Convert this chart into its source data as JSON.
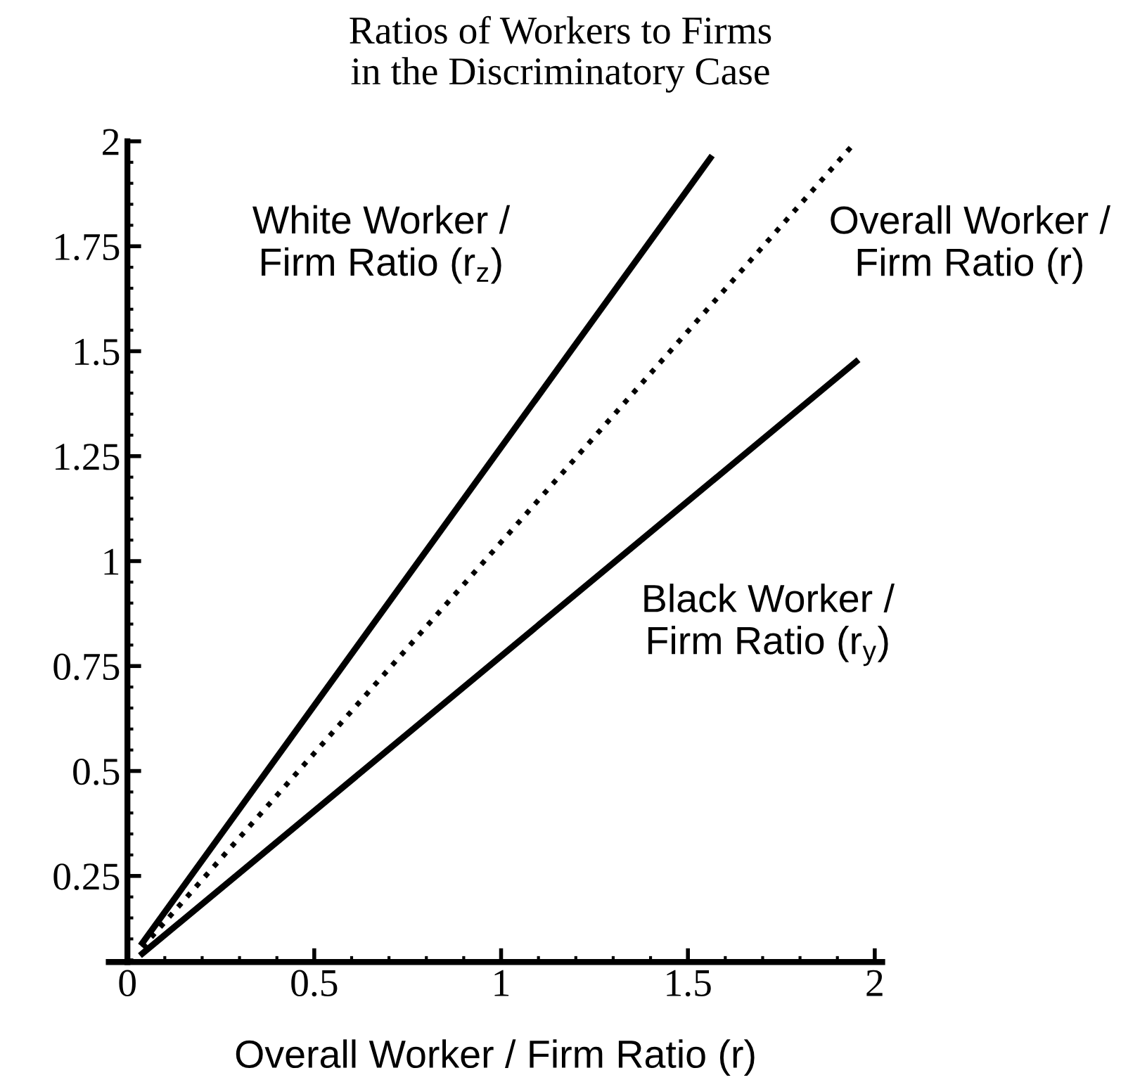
{
  "chart_data": {
    "type": "line",
    "title": "Ratios of Workers to Firms\nin the Discriminatory Case",
    "xlabel": "Overall Worker / Firm Ratio (r)",
    "xlim": [
      -0.05,
      2.02
    ],
    "ylim": [
      0.045,
      2.0
    ],
    "xticks": [
      0,
      0.5,
      1,
      1.5,
      2
    ],
    "yticks": [
      0.25,
      0.5,
      0.75,
      1,
      1.25,
      1.5,
      1.75,
      2
    ],
    "marker": "none",
    "grid": false,
    "legend": false,
    "series": [
      {
        "x": [
          0.04,
          1.56
        ],
        "values": [
          0.09,
          1.96
        ],
        "color": "#000000",
        "line_style": "solid"
      },
      {
        "x": [
          0.04,
          1.95
        ],
        "values": [
          0.08,
          2.0
        ],
        "color": "#000000",
        "line_style": "dotted"
      },
      {
        "x": [
          0.04,
          1.95
        ],
        "values": [
          0.065,
          1.475
        ],
        "color": "#000000",
        "line_style": "solid"
      }
    ],
    "annotations": [
      "White Worker /\nFirm Ratio (r$_{z}$)",
      "Overall Worker /\nFirm Ratio (r)",
      "Black Worker /\nFirm Ratio (r$_{y}$)"
    ]
  }
}
